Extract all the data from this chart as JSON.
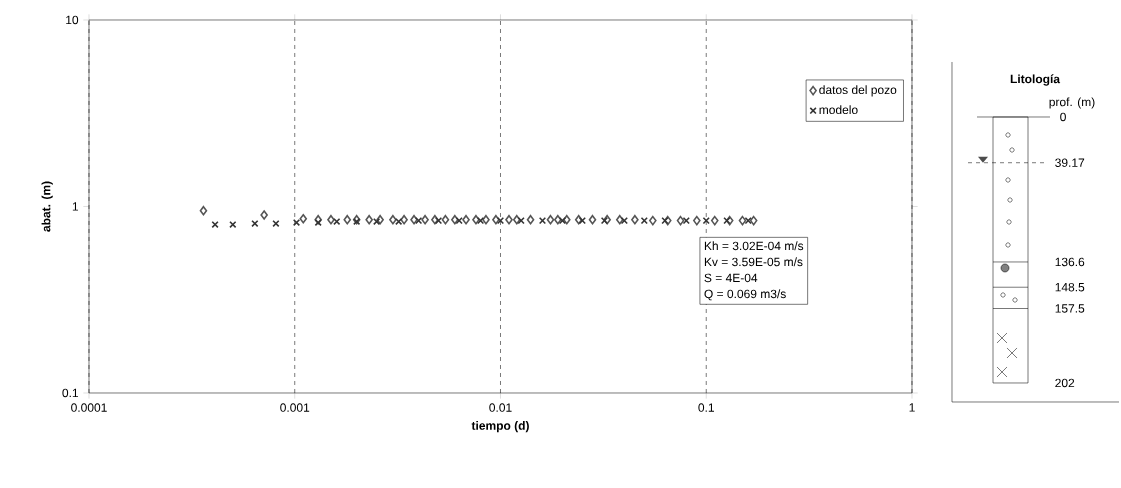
{
  "chart_data": [
    {
      "type": "scatter",
      "xlabel": "tiempo (d)",
      "ylabel": "abat. (m)",
      "log": "xy",
      "grid": "x",
      "legend": "top right",
      "xlim": [
        0.0001,
        1
      ],
      "xticks": [
        0.0001,
        0.001,
        0.01,
        0.1,
        1
      ],
      "ylim": [
        0.1,
        10
      ],
      "yticks": [
        0.1,
        1,
        10
      ],
      "series": [
        {
          "name": "datos del pozo",
          "color": "#555555",
          "marker": "diamond",
          "x": [
            0.00036,
            0.00071,
            0.0011,
            0.0013,
            0.0015,
            0.0018,
            0.002,
            0.0023,
            0.0026,
            0.003,
            0.0034,
            0.0038,
            0.0043,
            0.0048,
            0.0054,
            0.006,
            0.0068,
            0.0076,
            0.0085,
            0.0095,
            0.011,
            0.012,
            0.014,
            0.0175,
            0.019,
            0.021,
            0.024,
            0.028,
            0.033,
            0.038,
            0.045,
            0.055,
            0.065,
            0.075,
            0.09,
            0.11,
            0.13,
            0.15,
            0.17
          ],
          "values": [
            0.95,
            0.9,
            0.86,
            0.85,
            0.85,
            0.85,
            0.85,
            0.85,
            0.85,
            0.85,
            0.85,
            0.85,
            0.85,
            0.85,
            0.85,
            0.85,
            0.85,
            0.85,
            0.85,
            0.85,
            0.85,
            0.85,
            0.85,
            0.85,
            0.85,
            0.85,
            0.85,
            0.85,
            0.85,
            0.85,
            0.85,
            0.84,
            0.84,
            0.84,
            0.84,
            0.84,
            0.84,
            0.84,
            0.84
          ]
        },
        {
          "name": "modelo",
          "color": "#333333",
          "marker": "cross",
          "x": [
            0.00041,
            0.0005,
            0.00064,
            0.00081,
            0.00102,
            0.0013,
            0.0016,
            0.002,
            0.0025,
            0.0032,
            0.004,
            0.005,
            0.0063,
            0.008,
            0.01,
            0.0126,
            0.016,
            0.02,
            0.025,
            0.032,
            0.04,
            0.05,
            0.063,
            0.08,
            0.1,
            0.126,
            0.16
          ],
          "values": [
            0.8,
            0.8,
            0.81,
            0.81,
            0.82,
            0.82,
            0.83,
            0.83,
            0.83,
            0.83,
            0.84,
            0.84,
            0.84,
            0.84,
            0.84,
            0.84,
            0.84,
            0.84,
            0.84,
            0.84,
            0.84,
            0.84,
            0.84,
            0.84,
            0.84,
            0.84,
            0.84
          ]
        }
      ],
      "annotations": [
        "Kh = 3.02E-04 m/s",
        "Kv = 3.59E-05 m/s",
        "S = 4E-04",
        "Q = 0.069 m3/s"
      ]
    },
    {
      "type": "other",
      "title": "Litología",
      "ylabel": "prof. (m)",
      "annotations": [
        "0",
        "39.17",
        "136.6",
        "148.5",
        "157.5",
        "202"
      ]
    }
  ]
}
